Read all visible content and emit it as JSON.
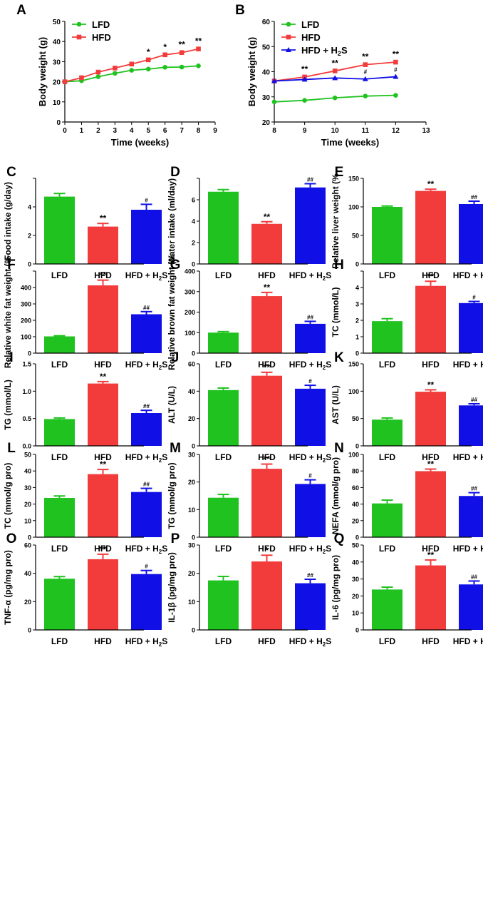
{
  "figure_title": "",
  "colors": {
    "LFD": "#1fc21f",
    "HFD": "#f23c3c",
    "H2S": "#1010e6",
    "axis": "#000000"
  },
  "chart_data": [
    {
      "id": "A",
      "letter": "A",
      "type": "line",
      "xlabel": "Time (weeks)",
      "ylabel": "Body weight (g)",
      "xlim": [
        0,
        9
      ],
      "ylim": [
        0,
        50
      ],
      "xticks": [
        0,
        1,
        2,
        3,
        4,
        5,
        6,
        7,
        8,
        9
      ],
      "yticks": [
        0,
        10,
        20,
        30,
        40,
        50
      ],
      "ytick_labels": [
        "0",
        "10",
        "20",
        "30",
        "40",
        "50"
      ],
      "series": [
        {
          "name": "LFD",
          "color": "#1fc21f",
          "marker": "circle",
          "x": [
            0,
            1,
            2,
            3,
            4,
            5,
            6,
            7,
            8
          ],
          "y": [
            20,
            20.5,
            22.5,
            24.2,
            25.7,
            26.3,
            27.2,
            27.3,
            27.9
          ]
        },
        {
          "name": "HFD",
          "color": "#f23c3c",
          "marker": "square",
          "x": [
            0,
            1,
            2,
            3,
            4,
            5,
            6,
            7,
            8
          ],
          "y": [
            20,
            22,
            24.8,
            26.8,
            28.8,
            30.9,
            33.4,
            34.5,
            36.3
          ]
        }
      ],
      "legend": [
        "LFD",
        "HFD"
      ],
      "annotations": [
        {
          "x": 5,
          "y": 30.9,
          "text": "*"
        },
        {
          "x": 6,
          "y": 33.4,
          "text": "*"
        },
        {
          "x": 7,
          "y": 34.5,
          "text": "**"
        },
        {
          "x": 8,
          "y": 36.3,
          "text": "**"
        }
      ]
    },
    {
      "id": "B",
      "letter": "B",
      "type": "line",
      "xlabel": "Time (weeks)",
      "ylabel": "Body weight (g)",
      "xlim": [
        8,
        13
      ],
      "ylim": [
        20,
        60
      ],
      "xticks": [
        8,
        9,
        10,
        11,
        12,
        13
      ],
      "yticks": [
        20,
        30,
        40,
        50,
        60
      ],
      "ytick_labels": [
        "20",
        "30",
        "40",
        "50",
        "60"
      ],
      "series": [
        {
          "name": "LFD",
          "color": "#1fc21f",
          "marker": "circle",
          "x": [
            8,
            9,
            10,
            11,
            12
          ],
          "y": [
            28,
            28.6,
            29.6,
            30.3,
            30.6
          ]
        },
        {
          "name": "HFD",
          "color": "#f23c3c",
          "marker": "square",
          "x": [
            8,
            9,
            10,
            11,
            12
          ],
          "y": [
            36.3,
            37.9,
            40.3,
            42.8,
            43.8
          ]
        },
        {
          "name": "HFD + H2S",
          "color": "#1010e6",
          "marker": "triangle",
          "x": [
            8,
            9,
            10,
            11,
            12
          ],
          "y": [
            36.3,
            36.9,
            37.5,
            37.1,
            38
          ]
        }
      ],
      "legend": [
        "LFD",
        "HFD",
        "HFD + H2S"
      ],
      "annotations": [
        {
          "x": 9,
          "y": 37.9,
          "text": "**"
        },
        {
          "x": 10,
          "y": 40.3,
          "text": "**"
        },
        {
          "x": 11,
          "y": 42.8,
          "text": "**"
        },
        {
          "x": 12,
          "y": 43.8,
          "text": "**"
        },
        {
          "x": 11,
          "y": 37.1,
          "text": "#"
        },
        {
          "x": 12,
          "y": 38,
          "text": "#"
        }
      ]
    },
    {
      "id": "C",
      "letter": "C",
      "type": "bar",
      "ylabel": "Food intake (g/day)",
      "ylim": [
        0,
        6
      ],
      "yticks": [
        0,
        2,
        4,
        6
      ],
      "ytick_labels": [
        "0",
        "2",
        "4",
        ""
      ],
      "categories": [
        "LFD",
        "HFD",
        "HFD + H2S"
      ],
      "values": [
        4.72,
        2.62,
        3.8
      ],
      "errors": [
        0.22,
        0.22,
        0.38
      ],
      "marks": [
        "",
        "**",
        "#"
      ]
    },
    {
      "id": "D",
      "letter": "D",
      "type": "bar",
      "ylabel": "Water intake (ml/day)",
      "ylim": [
        0,
        8
      ],
      "yticks": [
        0,
        2,
        4,
        6,
        8
      ],
      "ytick_labels": [
        "0",
        "2",
        "4",
        "6",
        ""
      ],
      "categories": [
        "LFD",
        "HFD",
        "HFD + H2S"
      ],
      "values": [
        6.75,
        3.75,
        7.15
      ],
      "errors": [
        0.2,
        0.2,
        0.35
      ],
      "marks": [
        "",
        "**",
        "##"
      ]
    },
    {
      "id": "E",
      "letter": "E",
      "type": "bar",
      "ylabel": "Relative liver weight (%",
      "ylim": [
        0,
        150
      ],
      "yticks": [
        0,
        50,
        100,
        150
      ],
      "ytick_labels": [
        "0",
        "50",
        "100",
        "150"
      ],
      "categories": [
        "LFD",
        "HFD",
        "HFD + H2S"
      ],
      "values": [
        100,
        128,
        105
      ],
      "errors": [
        1.5,
        3,
        5
      ],
      "marks": [
        "",
        "**",
        "##"
      ]
    },
    {
      "id": "F",
      "letter": "F",
      "type": "bar",
      "ylabel": "Relative white fat weight (%",
      "ylim": [
        0,
        500
      ],
      "yticks": [
        0,
        100,
        200,
        300,
        400,
        500
      ],
      "ytick_labels": [
        "0",
        "100",
        "200",
        "300",
        "400",
        ""
      ],
      "categories": [
        "LFD",
        "HFD",
        "HFD + H2S"
      ],
      "values": [
        102,
        413,
        237
      ],
      "errors": [
        4,
        32,
        16
      ],
      "marks": [
        "",
        "**",
        "##"
      ]
    },
    {
      "id": "G",
      "letter": "G",
      "type": "bar",
      "ylabel": "Relative brown fat weight (%",
      "ylim": [
        0,
        400
      ],
      "yticks": [
        0,
        100,
        200,
        300,
        400
      ],
      "ytick_labels": [
        "0",
        "100",
        "200",
        "300",
        "400"
      ],
      "categories": [
        "LFD",
        "HFD",
        "HFD + H2S"
      ],
      "values": [
        100,
        278,
        143
      ],
      "errors": [
        5,
        18,
        12
      ],
      "marks": [
        "",
        "**",
        "##"
      ]
    },
    {
      "id": "H",
      "letter": "H",
      "type": "bar",
      "ylabel": "TC (mmol/L)",
      "ylim": [
        0,
        5
      ],
      "yticks": [
        0,
        1,
        2,
        3,
        4,
        5
      ],
      "ytick_labels": [
        "0",
        "1",
        "2",
        "3",
        "4",
        ""
      ],
      "categories": [
        "LFD",
        "HFD",
        "HFD + H2S"
      ],
      "values": [
        1.95,
        4.1,
        3.05
      ],
      "errors": [
        0.15,
        0.28,
        0.1
      ],
      "marks": [
        "",
        "**",
        "#"
      ]
    },
    {
      "id": "I",
      "letter": "I",
      "type": "bar",
      "ylabel": "TG (mmol/L)",
      "ylim": [
        0,
        1.5
      ],
      "yticks": [
        0,
        0.5,
        1,
        1.5
      ],
      "ytick_labels": [
        "0.0",
        "0.5",
        "1.0",
        "1.5"
      ],
      "categories": [
        "LFD",
        "HFD",
        "HFD + H2S"
      ],
      "values": [
        0.49,
        1.14,
        0.6
      ],
      "errors": [
        0.02,
        0.035,
        0.05
      ],
      "marks": [
        "",
        "**",
        "##"
      ]
    },
    {
      "id": "J",
      "letter": "J",
      "type": "bar",
      "ylabel": "ALT (U/L)",
      "ylim": [
        0,
        60
      ],
      "yticks": [
        0,
        20,
        40,
        60
      ],
      "ytick_labels": [
        "0",
        "20",
        "40",
        "60"
      ],
      "categories": [
        "LFD",
        "HFD",
        "HFD + H2S"
      ],
      "values": [
        40.8,
        51.3,
        41.8
      ],
      "errors": [
        1.5,
        2.5,
        2.5
      ],
      "marks": [
        "",
        "**",
        "#"
      ]
    },
    {
      "id": "K",
      "letter": "K",
      "type": "bar",
      "ylabel": "AST (U/L)",
      "ylim": [
        0,
        150
      ],
      "yticks": [
        0,
        50,
        100,
        150
      ],
      "ytick_labels": [
        "0",
        "50",
        "100",
        "150"
      ],
      "categories": [
        "LFD",
        "HFD",
        "HFD + H2S"
      ],
      "values": [
        48,
        99,
        74
      ],
      "errors": [
        3,
        3.5,
        3
      ],
      "marks": [
        "",
        "**",
        "##"
      ]
    },
    {
      "id": "L",
      "letter": "L",
      "type": "bar",
      "ylabel": "TC (mmol/g pro)",
      "ylim": [
        0,
        50
      ],
      "yticks": [
        0,
        10,
        20,
        30,
        40,
        50
      ],
      "ytick_labels": [
        "0",
        "10",
        "20",
        "30",
        "40",
        "50"
      ],
      "categories": [
        "LFD",
        "HFD",
        "HFD + H2S"
      ],
      "values": [
        23.7,
        38.1,
        27.3
      ],
      "errors": [
        1.2,
        2.8,
        2.2
      ],
      "marks": [
        "",
        "**",
        "##"
      ]
    },
    {
      "id": "M",
      "letter": "M",
      "type": "bar",
      "ylabel": "TG (mmol/g pro)",
      "ylim": [
        0,
        30
      ],
      "yticks": [
        0,
        10,
        20,
        30
      ],
      "ytick_labels": [
        "0",
        "10",
        "20",
        "30"
      ],
      "categories": [
        "LFD",
        "HFD",
        "HFD + H2S"
      ],
      "values": [
        14.3,
        24.8,
        19.3
      ],
      "errors": [
        1.2,
        1.7,
        1.5
      ],
      "marks": [
        "",
        "**",
        "#"
      ]
    },
    {
      "id": "N",
      "letter": "N",
      "type": "bar",
      "ylabel": "NEFA (mmol/g pro)",
      "ylim": [
        0,
        100
      ],
      "yticks": [
        0,
        20,
        40,
        60,
        80,
        100
      ],
      "ytick_labels": [
        "0",
        "20",
        "40",
        "60",
        "80",
        "100"
      ],
      "categories": [
        "LFD",
        "HFD",
        "HFD + H2S"
      ],
      "values": [
        40.8,
        79.8,
        49.8
      ],
      "errors": [
        4,
        2.5,
        4
      ],
      "marks": [
        "",
        "**",
        "##"
      ]
    },
    {
      "id": "O",
      "letter": "O",
      "type": "bar",
      "ylabel": "TNF-α (pg/mg pro)",
      "ylim": [
        0,
        60
      ],
      "yticks": [
        0,
        20,
        40,
        60
      ],
      "ytick_labels": [
        "0",
        "20",
        "40",
        "60"
      ],
      "categories": [
        "LFD",
        "HFD",
        "HFD + H2S"
      ],
      "values": [
        36.2,
        50,
        39.5
      ],
      "errors": [
        1.5,
        3.5,
        2.5
      ],
      "marks": [
        "",
        "**",
        "#"
      ]
    },
    {
      "id": "P",
      "letter": "P",
      "type": "bar",
      "ylabel": "IL-1β (pg/mg pro)",
      "ylim": [
        0,
        30
      ],
      "yticks": [
        0,
        10,
        20,
        30
      ],
      "ytick_labels": [
        "0",
        "10",
        "20",
        "30"
      ],
      "categories": [
        "LFD",
        "HFD",
        "HFD + H2S"
      ],
      "values": [
        17.5,
        24.2,
        16.5
      ],
      "errors": [
        1.4,
        2.2,
        1.4
      ],
      "marks": [
        "",
        "*",
        "##"
      ]
    },
    {
      "id": "Q",
      "letter": "Q",
      "type": "bar",
      "ylabel": "IL-6 (pg/mg pro)",
      "ylim": [
        0,
        50
      ],
      "yticks": [
        0,
        10,
        20,
        30,
        40,
        50
      ],
      "ytick_labels": [
        "0",
        "10",
        "20",
        "30",
        "40",
        "50"
      ],
      "categories": [
        "LFD",
        "HFD",
        "HFD + H2S"
      ],
      "values": [
        23.8,
        38,
        26.8
      ],
      "errors": [
        1.4,
        3.2,
        2
      ],
      "marks": [
        "",
        "**",
        "##"
      ]
    }
  ]
}
